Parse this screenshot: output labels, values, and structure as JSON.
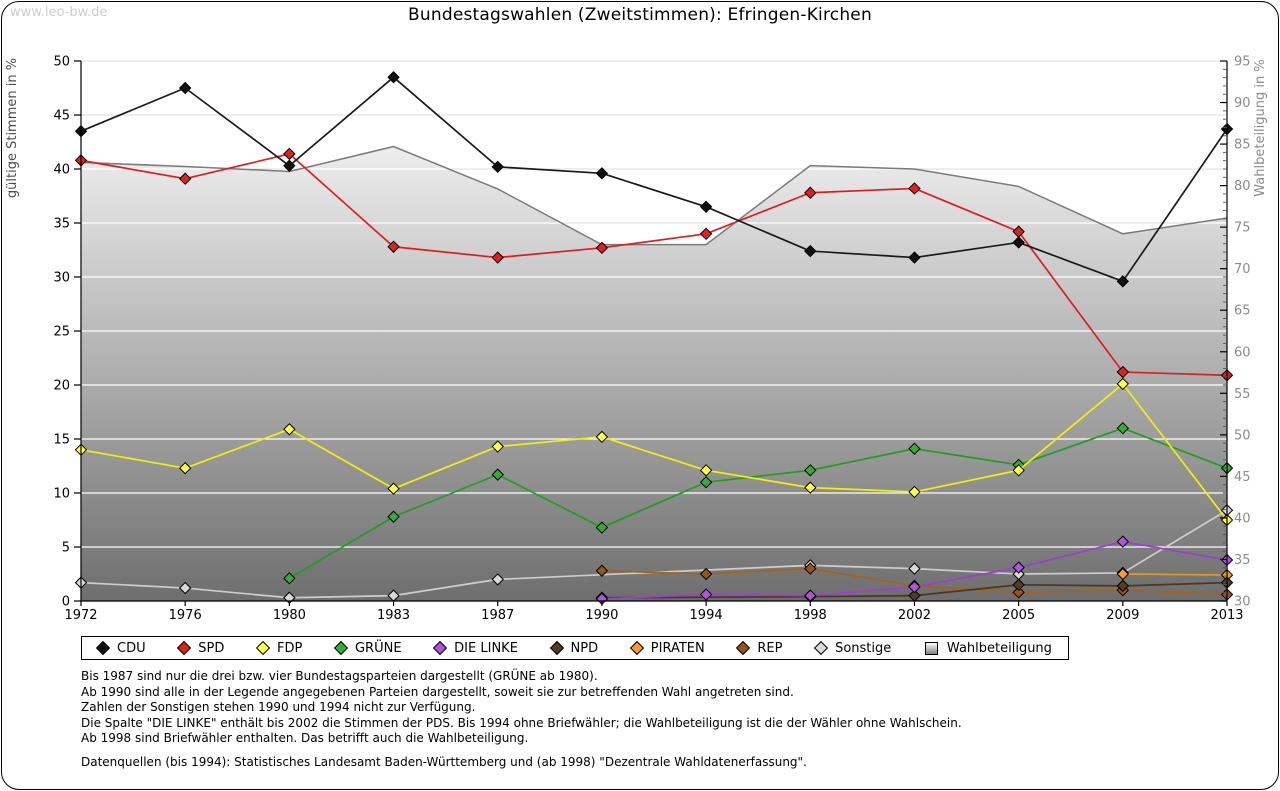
{
  "page": {
    "watermark": "www.leo-bw.de",
    "title": "Bundestagswahlen (Zweitstimmen): Efringen-Kirchen"
  },
  "chart_data": {
    "type": "line",
    "title": "Bundestagswahlen (Zweitstimmen): Efringen-Kirchen",
    "categories": [
      "1972",
      "1976",
      "1980",
      "1983",
      "1987",
      "1990",
      "1994",
      "1998",
      "2002",
      "2005",
      "2009",
      "2013"
    ],
    "left_axis": {
      "label": "gültige Stimmen in %",
      "min": 0,
      "max": 50,
      "tick_step": 5
    },
    "right_axis": {
      "label": "Wahlbeteiligung in %",
      "min": 30,
      "max": 95,
      "tick_step": 5,
      "minor_step": 1
    },
    "grid": true,
    "legend_position": "bottom",
    "series": [
      {
        "name": "CDU",
        "axis": "left",
        "line_color": "#1a1a1a",
        "marker_color": "#111111",
        "values": [
          43.5,
          47.5,
          40.3,
          48.5,
          40.2,
          39.6,
          36.5,
          32.4,
          31.8,
          33.2,
          29.6,
          43.7
        ]
      },
      {
        "name": "SPD",
        "axis": "left",
        "line_color": "#dd1e1e",
        "marker_color": "#e32020",
        "values": [
          40.8,
          39.1,
          41.4,
          32.8,
          31.8,
          32.7,
          34.0,
          37.8,
          38.2,
          34.2,
          21.2,
          20.9
        ]
      },
      {
        "name": "FDP",
        "axis": "left",
        "line_color": "#f0f00a",
        "marker_color": "#ffff42",
        "values": [
          14.0,
          12.3,
          15.9,
          10.4,
          14.3,
          15.2,
          12.1,
          10.5,
          10.1,
          12.1,
          20.1,
          7.5
        ]
      },
      {
        "name": "GRÜNE",
        "axis": "left",
        "line_color": "#1f9e1f",
        "marker_color": "#33ad33",
        "values": [
          null,
          null,
          2.1,
          7.8,
          11.7,
          6.8,
          11.0,
          12.1,
          14.1,
          12.6,
          16.0,
          12.3
        ]
      },
      {
        "name": "DIE LINKE",
        "axis": "left",
        "line_color": "#9b3fd1",
        "marker_color": "#b153df",
        "values": [
          null,
          null,
          null,
          null,
          null,
          0.2,
          0.6,
          0.5,
          1.3,
          3.1,
          5.5,
          3.8
        ]
      },
      {
        "name": "NPD",
        "axis": "left",
        "line_color": "#4b3621",
        "marker_color": "#533c25",
        "values": [
          null,
          null,
          null,
          null,
          null,
          0.3,
          null,
          0.4,
          0.5,
          1.5,
          1.4,
          1.7
        ]
      },
      {
        "name": "PIRATEN",
        "axis": "left",
        "line_color": "#f5921e",
        "marker_color": "#fb9a28",
        "values": [
          null,
          null,
          null,
          null,
          null,
          null,
          null,
          null,
          null,
          null,
          2.5,
          2.4
        ]
      },
      {
        "name": "REP",
        "axis": "left",
        "line_color": "#a4631c",
        "marker_color": "#995517",
        "values": [
          null,
          null,
          null,
          null,
          null,
          2.8,
          2.5,
          3.0,
          1.4,
          0.8,
          1.0,
          0.6
        ]
      },
      {
        "name": "Sonstige",
        "axis": "left",
        "line_color": "#cdcdcd",
        "marker_color": "#d8d8d8",
        "values": [
          1.7,
          1.2,
          0.3,
          0.5,
          2.0,
          null,
          null,
          3.3,
          3.0,
          2.5,
          2.6,
          8.4
        ]
      },
      {
        "name": "Wahlbeteiligung",
        "axis": "right",
        "type": "area",
        "line_color": "#7a7a7a",
        "fill_top": "#ffffff",
        "fill_bottom": "#6e6e6e",
        "values": [
          82.8,
          82.3,
          81.7,
          84.7,
          79.6,
          72.9,
          72.9,
          82.4,
          82.0,
          79.9,
          74.2,
          76.1
        ]
      }
    ]
  },
  "footnotes": {
    "lines": [
      "Bis 1987 sind nur die drei bzw. vier Bundestagsparteien dargestellt (GRÜNE ab 1980).",
      "Ab 1990 sind alle in der Legende angegebenen Parteien dargestellt, soweit sie zur betreffenden Wahl angetreten sind.",
      "Zahlen der Sonstigen stehen 1990 und 1994 nicht zur Verfügung.",
      "Die Spalte \"DIE LINKE\" enthält bis 2002 die Stimmen der PDS. Bis 1994 ohne Briefwähler; die Wahlbeteiligung ist die der Wähler ohne Wahlschein.",
      "Ab 1998 sind Briefwähler enthalten. Das betrifft auch die Wahlbeteiligung."
    ],
    "source": "Datenquellen (bis 1994): Statistisches Landesamt Baden-Württemberg und (ab 1998) \"Dezentrale Wahldatenerfassung\"."
  }
}
